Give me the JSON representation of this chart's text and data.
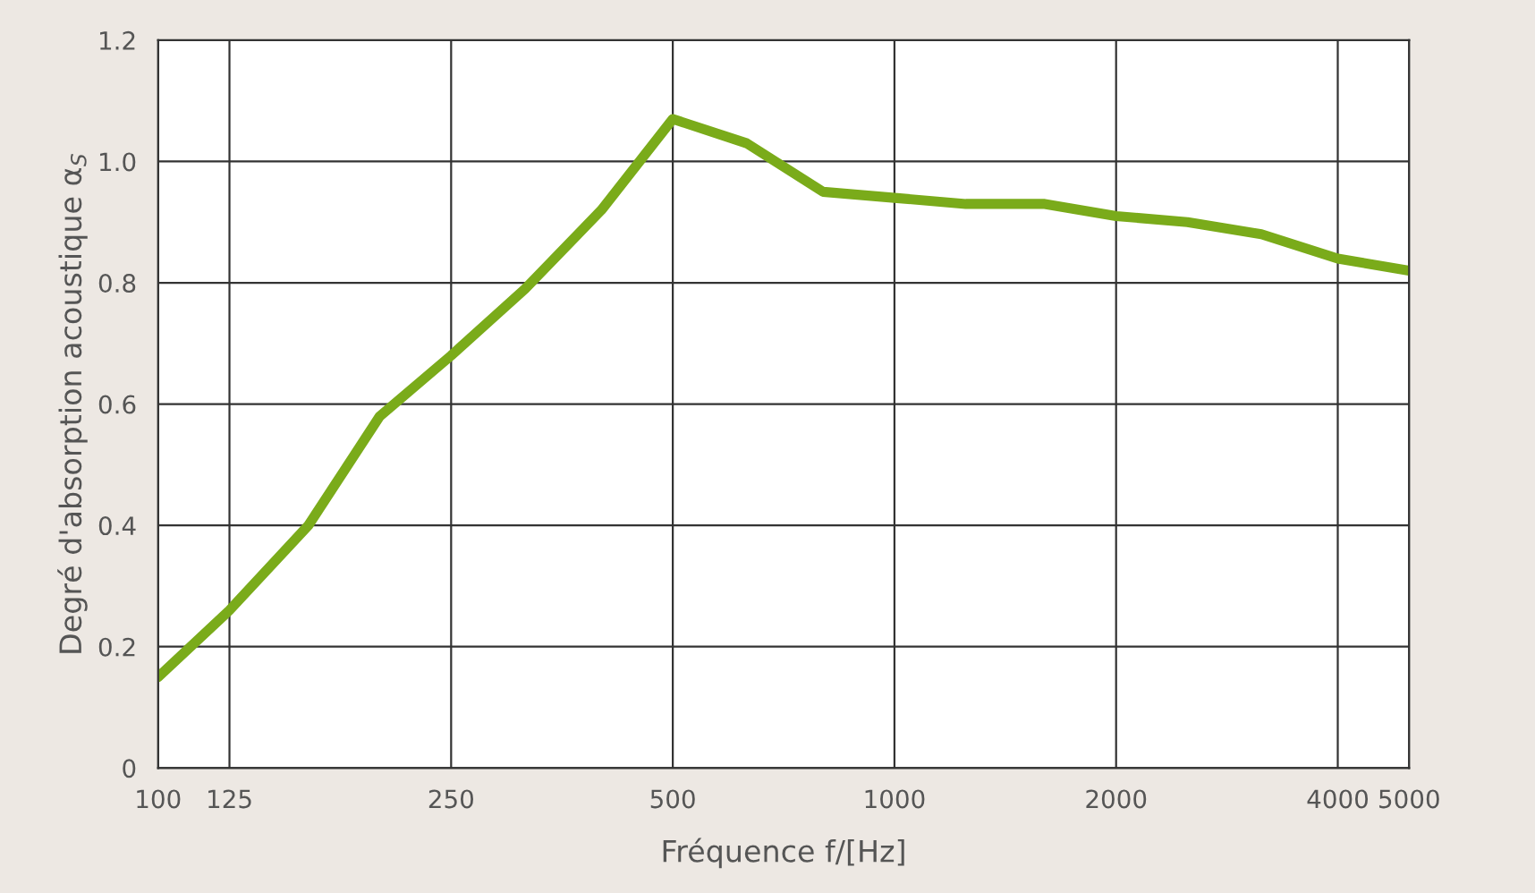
{
  "chart_data": {
    "type": "line",
    "xlabel": "Fréquence f/[Hz]",
    "ylabel": "Degré d'absorption acoustique α$_{S}$",
    "x": [
      100,
      125,
      160,
      200,
      250,
      315,
      400,
      500,
      630,
      800,
      1000,
      1250,
      1600,
      2000,
      2500,
      3150,
      4000,
      5000
    ],
    "series": [
      {
        "color": "#7aab1a",
        "values": [
          0.15,
          0.26,
          0.4,
          0.58,
          0.68,
          0.79,
          0.92,
          1.07,
          1.03,
          0.95,
          0.94,
          0.93,
          0.93,
          0.91,
          0.9,
          0.88,
          0.84,
          0.82
        ]
      }
    ],
    "log": "x",
    "xlim": [
      100,
      5000
    ],
    "xticks": [
      100,
      125,
      250,
      500,
      1000,
      2000,
      4000,
      5000
    ],
    "ylim": [
      0,
      1.2
    ],
    "yticks": [
      0,
      0.2,
      0.4,
      0.6,
      0.8,
      {
        "value": 1,
        "label": "1.0"
      },
      1.2
    ],
    "grid": true,
    "marker": "none",
    "line_style": "solid"
  }
}
